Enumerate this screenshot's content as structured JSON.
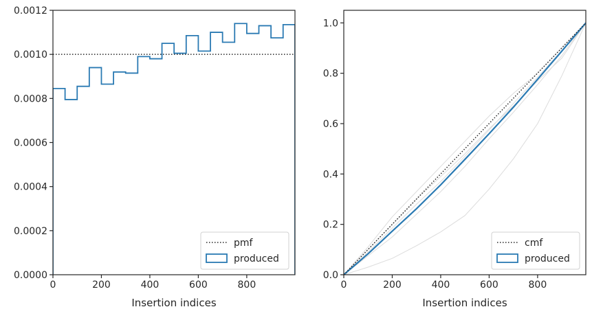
{
  "chart_data": [
    {
      "type": "line",
      "xlabel": "Insertion indices",
      "ylabel": "",
      "xlim": [
        0,
        999
      ],
      "ylim": [
        0,
        0.0012
      ],
      "x_ticks": [
        0,
        200,
        400,
        600,
        800
      ],
      "y_ticks": [
        0.0,
        0.0002,
        0.0004,
        0.0006,
        0.0008,
        0.001,
        0.0012
      ],
      "x_tick_labels": [
        "0",
        "200",
        "400",
        "600",
        "800"
      ],
      "y_tick_labels": [
        "0.0000",
        "0.0002",
        "0.0004",
        "0.0006",
        "0.0008",
        "0.0010",
        "0.0012"
      ],
      "legend_position": "bottom-right",
      "grid": false,
      "reference_line": {
        "name": "pmf",
        "style": "dotted",
        "color": "#262626",
        "y": 0.001
      },
      "histogram": {
        "name": "produced",
        "color": "#2a7ab3",
        "bin_edges": [
          0,
          50,
          100,
          150,
          200,
          250,
          300,
          350,
          400,
          450,
          500,
          550,
          600,
          650,
          700,
          750,
          800,
          850,
          900,
          950,
          999
        ],
        "values": [
          0.000845,
          0.000795,
          0.000855,
          0.00094,
          0.000865,
          0.00092,
          0.000915,
          0.00099,
          0.00098,
          0.00105,
          0.001005,
          0.001085,
          0.001015,
          0.0011,
          0.001055,
          0.00114,
          0.001095,
          0.00113,
          0.001075,
          0.001135
        ]
      }
    },
    {
      "type": "line",
      "xlabel": "Insertion indices",
      "ylabel": "",
      "xlim": [
        0,
        999
      ],
      "ylim": [
        0,
        1.05
      ],
      "x_ticks": [
        0,
        200,
        400,
        600,
        800
      ],
      "y_ticks": [
        0.0,
        0.2,
        0.4,
        0.6,
        0.8,
        1.0
      ],
      "x_tick_labels": [
        "0",
        "200",
        "400",
        "600",
        "800"
      ],
      "y_tick_labels": [
        "0.0",
        "0.2",
        "0.4",
        "0.6",
        "0.8",
        "1.0"
      ],
      "legend_position": "bottom-right",
      "grid": false,
      "reference_line": {
        "name": "cmf",
        "style": "dotted",
        "color": "#262626",
        "points": [
          [
            0,
            0
          ],
          [
            999,
            1.0
          ]
        ]
      },
      "series": [
        {
          "name": "produced",
          "color": "#2a7ab3",
          "x": [
            0,
            100,
            200,
            300,
            400,
            500,
            600,
            700,
            800,
            900,
            999
          ],
          "y": [
            0,
            0.083,
            0.173,
            0.262,
            0.357,
            0.458,
            0.56,
            0.665,
            0.776,
            0.888,
            1.0
          ]
        }
      ],
      "background_curves": {
        "color": "#dcdcdc",
        "curves": [
          {
            "x": [
              0,
              100,
              200,
              300,
              400,
              500,
              600,
              700,
              800,
              900,
              999
            ],
            "y": [
              0,
              0.03,
              0.065,
              0.115,
              0.17,
              0.235,
              0.34,
              0.46,
              0.6,
              0.79,
              1.0
            ]
          },
          {
            "x": [
              0,
              100,
              200,
              300,
              400,
              500,
              600,
              700,
              800,
              900,
              999
            ],
            "y": [
              0,
              0.1,
              0.2,
              0.3,
              0.39,
              0.48,
              0.58,
              0.67,
              0.77,
              0.86,
              1.0
            ]
          },
          {
            "x": [
              0,
              100,
              200,
              300,
              400,
              500,
              600,
              700,
              800,
              900,
              999
            ],
            "y": [
              0,
              0.11,
              0.23,
              0.33,
              0.43,
              0.53,
              0.63,
              0.72,
              0.8,
              0.9,
              1.0
            ]
          },
          {
            "x": [
              0,
              100,
              200,
              300,
              400,
              500,
              600,
              700,
              800,
              900,
              999
            ],
            "y": [
              0,
              0.075,
              0.15,
              0.24,
              0.33,
              0.43,
              0.54,
              0.645,
              0.755,
              0.87,
              1.0
            ]
          },
          {
            "x": [
              0,
              100,
              200,
              300,
              400,
              500,
              600,
              700,
              800,
              900,
              999
            ],
            "y": [
              0,
              0.09,
              0.185,
              0.28,
              0.37,
              0.47,
              0.575,
              0.68,
              0.785,
              0.89,
              1.0
            ]
          }
        ]
      }
    }
  ]
}
